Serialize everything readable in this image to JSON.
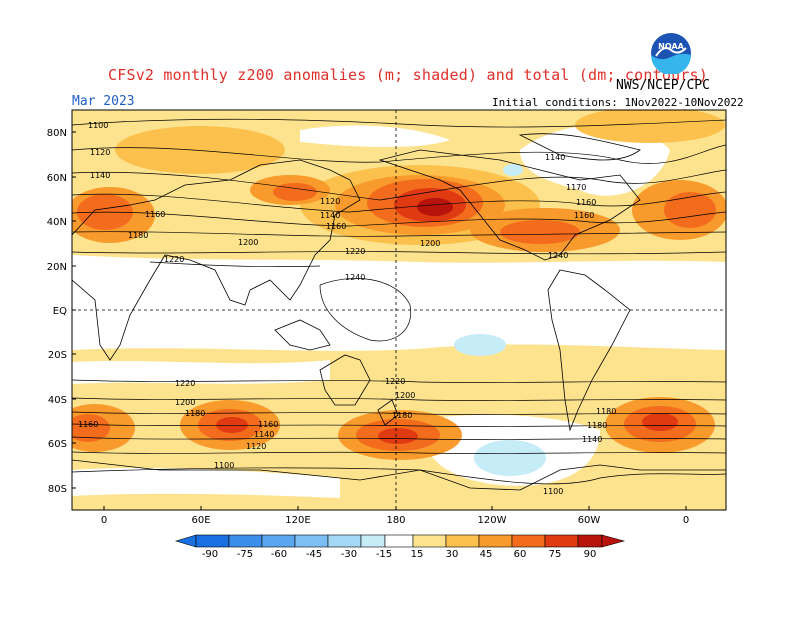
{
  "header": {
    "title": "CFSv2 monthly z200 anomalies (m; shaded) and total (dm; contours)",
    "org": "NWS/NCEP/CPC",
    "month": "Mar 2023",
    "init": "Initial conditions: 1Nov2022-10Nov2022",
    "logo_text": "NOAA"
  },
  "map": {
    "lat_labels": [
      "80N",
      "60N",
      "40N",
      "20N",
      "EQ",
      "20S",
      "40S",
      "60S",
      "80S"
    ],
    "lon_labels": [
      "0",
      "60E",
      "120E",
      "180",
      "120W",
      "60W",
      "0"
    ],
    "contour_labels": [
      "1100",
      "1120",
      "1140",
      "1160",
      "1180",
      "1200",
      "1220",
      "1240",
      "1120",
      "1140",
      "1160",
      "1200",
      "1220",
      "1240",
      "1220",
      "1200",
      "1180",
      "1160",
      "1140",
      "1120",
      "1100",
      "1160",
      "1180",
      "1200",
      "1220",
      "1180",
      "1180",
      "1140",
      "1160",
      "1100",
      "1160",
      "1170",
      "1140"
    ],
    "colors": {
      "neg_90": "#1a70e0",
      "neg_75": "#3c8eea",
      "neg_60": "#5aa6f0",
      "neg_45": "#7dbef5",
      "neg_30": "#a4d8f7",
      "neg_15": "#c6ecf8",
      "pos_15": "#fde38e",
      "pos_30": "#fbc14c",
      "pos_45": "#f99a2c",
      "pos_60": "#f36b1c",
      "pos_75": "#e03a12",
      "pos_90": "#b8140c"
    }
  },
  "colorbar": {
    "ticks": [
      "-90",
      "-75",
      "-60",
      "-45",
      "-30",
      "-15",
      "15",
      "30",
      "45",
      "60",
      "75",
      "90"
    ]
  }
}
